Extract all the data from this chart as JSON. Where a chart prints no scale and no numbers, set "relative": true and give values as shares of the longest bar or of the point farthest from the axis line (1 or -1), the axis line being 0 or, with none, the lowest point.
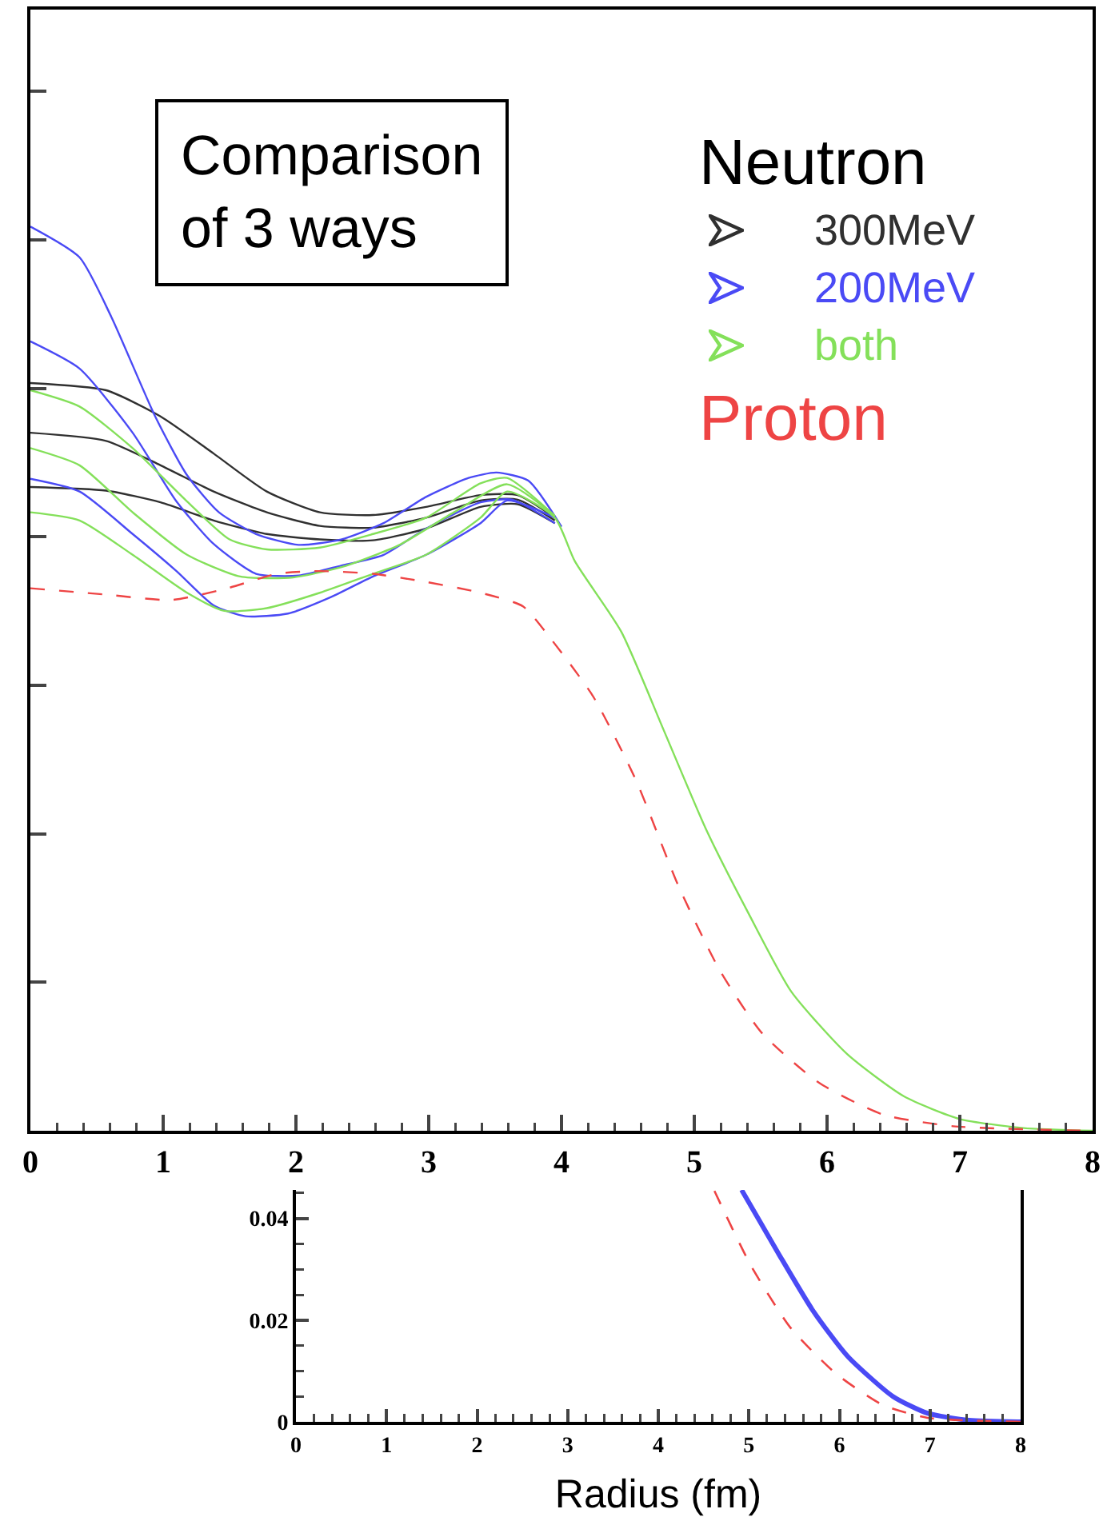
{
  "chart_data": [
    {
      "type": "line",
      "relative": true,
      "xlim": [
        0,
        8
      ],
      "xticks": [
        0,
        1,
        2,
        3,
        4,
        5,
        6,
        7,
        8
      ],
      "tick_labels": "x",
      "legend": "top right",
      "legend_title": "Neutron",
      "annotations": [
        "Comparison\nof 3 ways"
      ],
      "series": [
        {
          "name": "300MeV",
          "color": "#303030",
          "line_style": "solid",
          "x": [
            0,
            0.57,
            0.98,
            1.38,
            1.78,
            2.18,
            2.58,
            2.98,
            3.39,
            3.67,
            3.95
          ],
          "values": [
            0.827,
            0.819,
            0.79,
            0.749,
            0.707,
            0.684,
            0.681,
            0.69,
            0.703,
            0.703,
            0.678
          ]
        },
        {
          "color": "#303030",
          "line_style": "solid",
          "x": [
            0,
            0.57,
            0.98,
            1.38,
            1.78,
            2.18,
            2.58,
            2.98,
            3.39,
            3.67,
            3.95
          ],
          "values": [
            0.772,
            0.763,
            0.736,
            0.707,
            0.684,
            0.669,
            0.667,
            0.678,
            0.697,
            0.698,
            0.675
          ]
        },
        {
          "color": "#303030",
          "line_style": "solid",
          "x": [
            0,
            0.57,
            0.98,
            1.38,
            1.78,
            2.18,
            2.58,
            2.98,
            3.39,
            3.67,
            3.95
          ],
          "values": [
            0.712,
            0.708,
            0.695,
            0.675,
            0.66,
            0.654,
            0.653,
            0.666,
            0.69,
            0.693,
            0.672
          ]
        },
        {
          "name": "200MeV",
          "color": "#4a4af5",
          "line_style": "solid",
          "x": [
            0,
            0.37,
            0.61,
            0.94,
            1.18,
            1.42,
            1.7,
            2.02,
            2.34,
            2.66,
            2.98,
            3.3,
            3.51,
            3.75,
            4.0
          ],
          "values": [
            1,
            0.966,
            0.9,
            0.79,
            0.725,
            0.684,
            0.66,
            0.648,
            0.654,
            0.672,
            0.701,
            0.722,
            0.728,
            0.719,
            0.668
          ]
        },
        {
          "color": "#4a4af5",
          "line_style": "solid",
          "x": [
            0,
            0.37,
            0.77,
            1.1,
            1.38,
            1.7,
            2.02,
            2.34,
            2.66,
            2.98,
            3.39,
            3.63,
            3.95
          ],
          "values": [
            0.873,
            0.843,
            0.772,
            0.696,
            0.649,
            0.616,
            0.614,
            0.625,
            0.637,
            0.666,
            0.695,
            0.698,
            0.672
          ]
        },
        {
          "color": "#4a4af5",
          "line_style": "solid",
          "x": [
            0,
            0.37,
            0.77,
            1.1,
            1.38,
            1.62,
            1.94,
            2.26,
            2.58,
            2.98,
            3.39,
            3.59,
            3.95
          ],
          "values": [
            0.721,
            0.707,
            0.66,
            0.619,
            0.581,
            0.569,
            0.572,
            0.59,
            0.613,
            0.637,
            0.672,
            0.697,
            0.678
          ]
        },
        {
          "name": "both",
          "color": "#84e05a",
          "line_style": "solid",
          "x": [
            0,
            0.37,
            0.77,
            1.18,
            1.5,
            1.78,
            2.18,
            2.58,
            2.98,
            3.39,
            3.59,
            3.95
          ],
          "values": [
            0.819,
            0.801,
            0.755,
            0.696,
            0.654,
            0.643,
            0.645,
            0.66,
            0.678,
            0.716,
            0.722,
            0.68
          ]
        },
        {
          "color": "#84e05a",
          "line_style": "solid",
          "x": [
            0,
            0.37,
            0.77,
            1.18,
            1.58,
            1.98,
            2.38,
            2.78,
            3.19,
            3.59,
            3.95
          ],
          "values": [
            0.755,
            0.736,
            0.684,
            0.637,
            0.613,
            0.612,
            0.625,
            0.648,
            0.684,
            0.715,
            0.68
          ]
        },
        {
          "color": "#84e05a",
          "line_style": "solid",
          "x": [
            0,
            0.37,
            0.77,
            1.18,
            1.46,
            1.78,
            2.18,
            2.58,
            2.98,
            3.39,
            3.59,
            3.95,
            4.1,
            4.45,
            4.77,
            5.09,
            5.41,
            5.73,
            6.15,
            6.58,
            7.0,
            7.48,
            8
          ],
          "values": [
            0.684,
            0.675,
            0.637,
            0.595,
            0.575,
            0.578,
            0.595,
            0.616,
            0.637,
            0.678,
            0.707,
            0.678,
            0.63,
            0.552,
            0.443,
            0.333,
            0.24,
            0.154,
            0.085,
            0.038,
            0.013,
            0.003,
            0
          ]
        },
        {
          "name": "Proton",
          "color": "#ee4444",
          "line_style": "dashed",
          "x": [
            0,
            0.57,
            1.06,
            1.46,
            1.86,
            2.18,
            2.58,
            2.98,
            3.39,
            3.71,
            3.92,
            4.24,
            4.56,
            4.88,
            5.19,
            5.51,
            5.94,
            6.42,
            6.95,
            8
          ],
          "values": [
            0.6,
            0.593,
            0.587,
            0.599,
            0.616,
            0.619,
            0.616,
            0.607,
            0.595,
            0.58,
            0.544,
            0.48,
            0.388,
            0.271,
            0.178,
            0.108,
            0.053,
            0.018,
            0.005,
            0
          ]
        }
      ]
    },
    {
      "type": "line",
      "xlim": [
        0,
        8
      ],
      "xticks": [
        0,
        1,
        2,
        3,
        4,
        5,
        6,
        7,
        8
      ],
      "ylim": [
        0,
        0.0456
      ],
      "yticks": [
        0,
        0.02,
        0.04
      ],
      "xlabel": "Radius (fm)",
      "series": [
        {
          "color": "#4a4af5",
          "line_style": "solid",
          "x": [
            4.92,
            5.33,
            5.71,
            6.09,
            6.59,
            6.97,
            7.43,
            8
          ],
          "values": [
            0.0456,
            0.033,
            0.0218,
            0.0129,
            0.005,
            0.0017,
            0.0003,
            0
          ]
        },
        {
          "color": "#ee4444",
          "line_style": "dashed",
          "x": [
            4.62,
            5.02,
            5.46,
            5.96,
            6.47,
            6.97,
            8
          ],
          "values": [
            0.0454,
            0.0308,
            0.0185,
            0.0095,
            0.0034,
            0.0008,
            0
          ]
        }
      ]
    }
  ]
}
